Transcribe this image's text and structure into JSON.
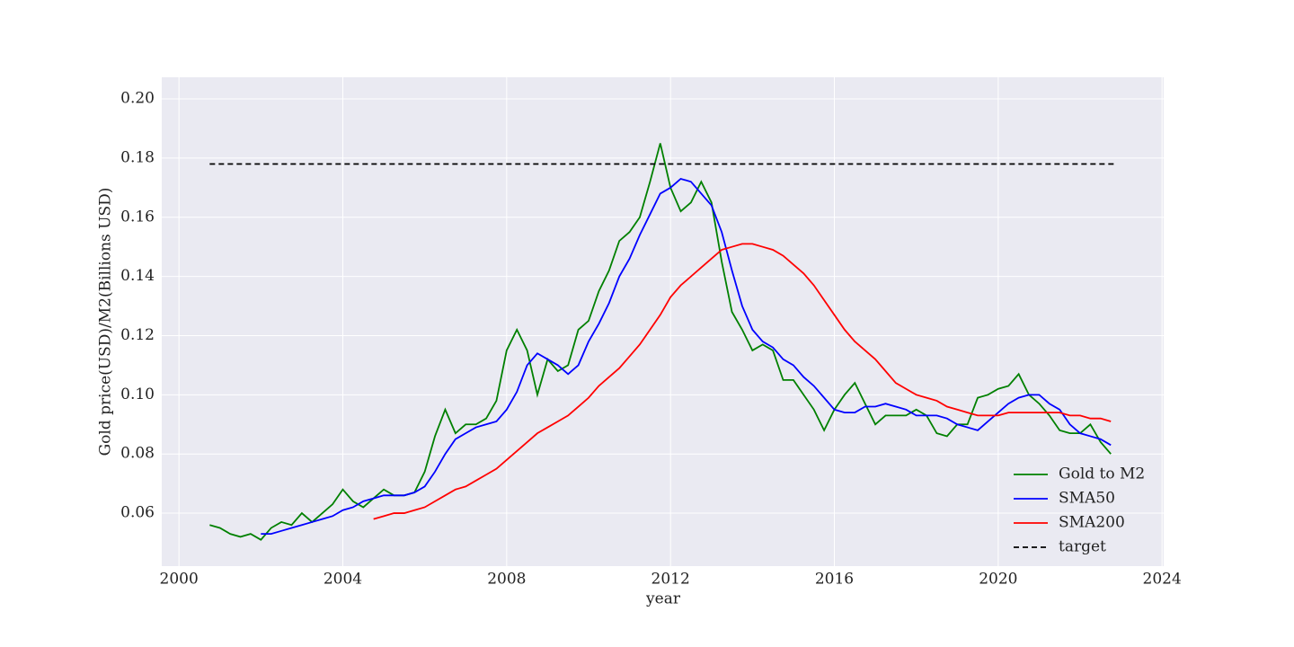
{
  "chart_data": {
    "type": "line",
    "xlabel": "year",
    "ylabel": "Gold price(USD)/M2(Billions USD)",
    "xlim": [
      1999.58,
      2024.04
    ],
    "ylim": [
      0.0421,
      0.2073
    ],
    "xticks": [
      2000,
      2004,
      2008,
      2012,
      2016,
      2020,
      2024
    ],
    "yticks": [
      0.06,
      0.08,
      {
        "value": 0.1,
        "label": "0.10"
      },
      0.12,
      0.14,
      0.16,
      0.18,
      {
        "value": 0.2,
        "label": "0.20"
      }
    ],
    "grid": true,
    "legend": "lower right",
    "x": [
      2000.75,
      2001,
      2001.25,
      2001.5,
      2001.75,
      2002,
      2002.25,
      2002.5,
      2002.75,
      2003,
      2003.25,
      2003.5,
      2003.75,
      2004,
      2004.25,
      2004.5,
      2004.75,
      2005,
      2005.25,
      2005.5,
      2005.75,
      2006,
      2006.25,
      2006.5,
      2006.75,
      2007,
      2007.25,
      2007.5,
      2007.75,
      2008,
      2008.25,
      2008.5,
      2008.75,
      2009,
      2009.25,
      2009.5,
      2009.75,
      2010,
      2010.25,
      2010.5,
      2010.75,
      2011,
      2011.25,
      2011.5,
      2011.75,
      2012,
      2012.25,
      2012.5,
      2012.75,
      2013,
      2013.25,
      2013.5,
      2013.75,
      2014,
      2014.25,
      2014.5,
      2014.75,
      2015,
      2015.25,
      2015.5,
      2015.75,
      2016,
      2016.25,
      2016.5,
      2016.75,
      2017,
      2017.25,
      2017.5,
      2017.75,
      2018,
      2018.25,
      2018.5,
      2018.75,
      2019,
      2019.25,
      2019.5,
      2019.75,
      2020,
      2020.25,
      2020.5,
      2020.75,
      2021,
      2021.25,
      2021.5,
      2021.75,
      2022,
      2022.25,
      2022.5,
      2022.75
    ],
    "series": [
      {
        "name": "Gold to M2",
        "color": "#008000",
        "values": [
          0.056,
          0.055,
          0.053,
          0.052,
          0.053,
          0.051,
          0.055,
          0.057,
          0.056,
          0.06,
          0.057,
          0.06,
          0.063,
          0.068,
          0.064,
          0.062,
          0.065,
          0.068,
          0.066,
          0.066,
          0.067,
          0.074,
          0.086,
          0.095,
          0.087,
          0.09,
          0.09,
          0.092,
          0.098,
          0.115,
          0.122,
          0.115,
          0.1,
          0.112,
          0.108,
          0.11,
          0.122,
          0.125,
          0.135,
          0.142,
          0.152,
          0.155,
          0.16,
          0.172,
          0.185,
          0.17,
          0.162,
          0.165,
          0.172,
          0.165,
          0.145,
          0.128,
          0.122,
          0.115,
          0.117,
          0.115,
          0.105,
          0.105,
          0.1,
          0.095,
          0.088,
          0.095,
          0.1,
          0.104,
          0.097,
          0.09,
          0.093,
          0.093,
          0.093,
          0.095,
          0.093,
          0.087,
          0.086,
          0.09,
          0.09,
          0.099,
          0.1,
          0.102,
          0.103,
          0.107,
          0.1,
          0.097,
          0.093,
          0.088,
          0.087,
          0.087,
          0.09,
          0.084,
          0.08
        ]
      },
      {
        "name": "SMA50",
        "color": "#0000ff",
        "values": [
          null,
          null,
          null,
          null,
          null,
          0.053,
          0.053,
          0.054,
          0.055,
          0.056,
          0.057,
          0.058,
          0.059,
          0.061,
          0.062,
          0.064,
          0.065,
          0.066,
          0.066,
          0.066,
          0.067,
          0.069,
          0.074,
          0.08,
          0.085,
          0.087,
          0.089,
          0.09,
          0.091,
          0.095,
          0.101,
          0.11,
          0.114,
          0.112,
          0.11,
          0.107,
          0.11,
          0.118,
          0.124,
          0.131,
          0.14,
          0.146,
          0.154,
          0.161,
          0.168,
          0.17,
          0.173,
          0.172,
          0.168,
          0.164,
          0.155,
          0.142,
          0.13,
          0.122,
          0.118,
          0.116,
          0.112,
          0.11,
          0.106,
          0.103,
          0.099,
          0.095,
          0.094,
          0.094,
          0.096,
          0.096,
          0.097,
          0.096,
          0.095,
          0.093,
          0.093,
          0.093,
          0.092,
          0.09,
          0.089,
          0.088,
          0.091,
          0.094,
          0.097,
          0.099,
          0.1,
          0.1,
          0.097,
          0.095,
          0.09,
          0.087,
          0.086,
          0.085,
          0.083
        ]
      },
      {
        "name": "SMA200",
        "color": "#ff0000",
        "values": [
          null,
          null,
          null,
          null,
          null,
          null,
          null,
          null,
          null,
          null,
          null,
          null,
          null,
          null,
          null,
          null,
          0.058,
          0.059,
          0.06,
          0.06,
          0.061,
          0.062,
          0.064,
          0.066,
          0.068,
          0.069,
          0.071,
          0.073,
          0.075,
          0.078,
          0.081,
          0.084,
          0.087,
          0.089,
          0.091,
          0.093,
          0.096,
          0.099,
          0.103,
          0.106,
          0.109,
          0.113,
          0.117,
          0.122,
          0.127,
          0.133,
          0.137,
          0.14,
          0.143,
          0.146,
          0.149,
          0.15,
          0.151,
          0.151,
          0.15,
          0.149,
          0.147,
          0.144,
          0.141,
          0.137,
          0.132,
          0.127,
          0.122,
          0.118,
          0.115,
          0.112,
          0.108,
          0.104,
          0.102,
          0.1,
          0.099,
          0.098,
          0.096,
          0.095,
          0.094,
          0.093,
          0.093,
          0.093,
          0.094,
          0.094,
          0.094,
          0.094,
          0.094,
          0.094,
          0.093,
          0.093,
          0.092,
          0.092,
          0.091
        ]
      },
      {
        "name": "target",
        "color": "#000000",
        "dash": true,
        "x": [
          2000.75,
          2022.9
        ],
        "values": [
          0.178,
          0.178
        ]
      }
    ]
  }
}
